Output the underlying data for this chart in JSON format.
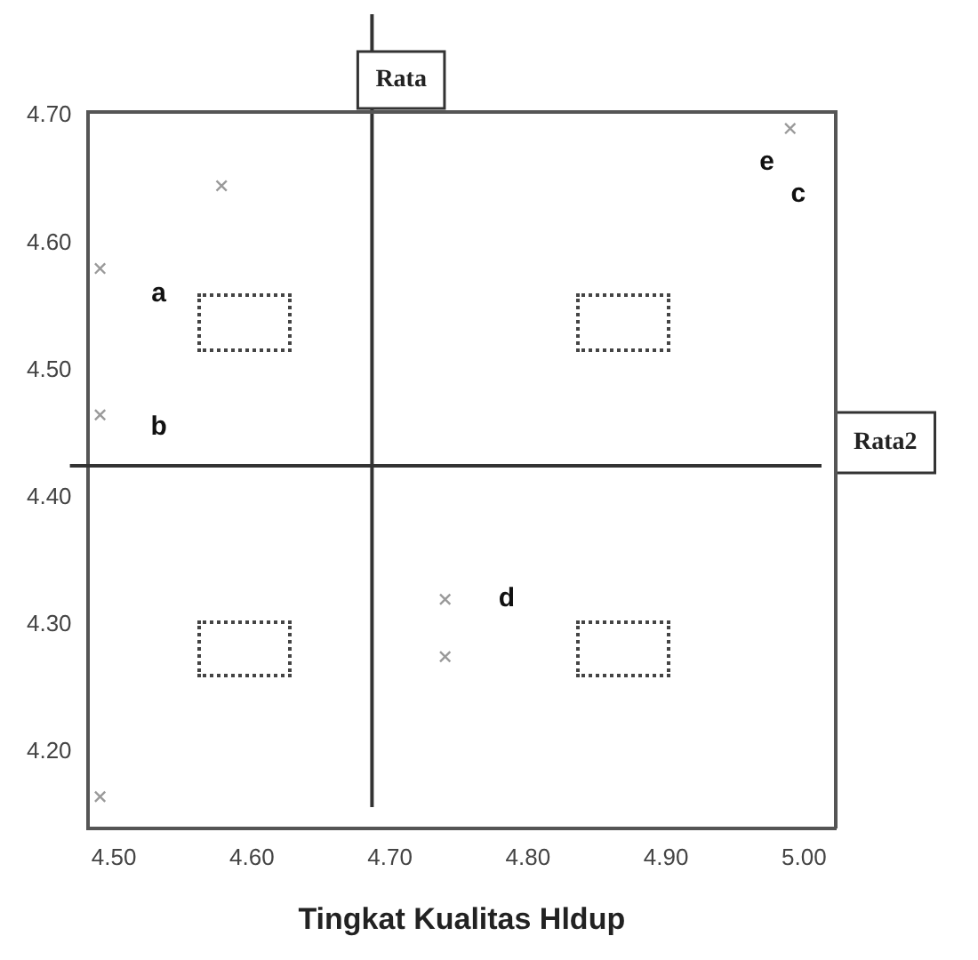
{
  "chart_data": {
    "type": "scatter",
    "xlabel": "Tingkat Kualitas Hldup",
    "series": [
      {
        "color": "#9a9a9a",
        "x": [
          4.49,
          4.49,
          4.578,
          4.49,
          4.74,
          4.74,
          4.99
        ],
        "values": [
          4.58,
          4.465,
          4.645,
          4.165,
          4.32,
          4.275,
          4.69
        ]
      }
    ],
    "xlim": [
      4.481,
      5.023
    ],
    "ylim": [
      4.14,
      4.703
    ],
    "xticks": [
      {
        "value": 4.5,
        "label": "4.50"
      },
      {
        "value": 4.6,
        "label": "4.60"
      },
      {
        "value": 4.7,
        "label": "4.70"
      },
      {
        "value": 4.8,
        "label": "4.80"
      },
      {
        "value": 4.9,
        "label": "4.90"
      },
      {
        "value": 5.0,
        "label": "5.00"
      }
    ],
    "yticks": [
      {
        "value": 4.2,
        "label": "4.20"
      },
      {
        "value": 4.3,
        "label": "4.30"
      },
      {
        "value": 4.4,
        "label": "4.40"
      },
      {
        "value": 4.5,
        "label": "4.50"
      },
      {
        "value": 4.6,
        "label": "4.60"
      },
      {
        "value": 4.7,
        "label": "4.70"
      }
    ],
    "ref_lines": [
      {
        "axis": "x",
        "value": 4.687,
        "label": "Rata",
        "color": "#333333"
      },
      {
        "axis": "y",
        "value": 4.425,
        "label": "Rata2",
        "color": "#333333"
      }
    ],
    "annotations": [
      "a",
      "b",
      "c",
      "d",
      "e"
    ],
    "grid": false,
    "legend": false,
    "marker": "cross"
  }
}
